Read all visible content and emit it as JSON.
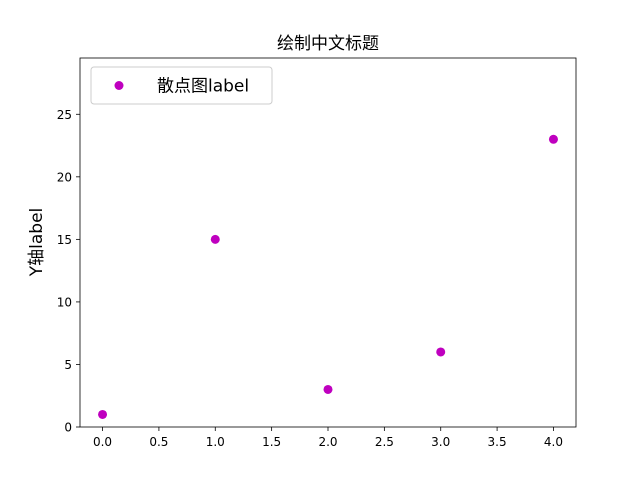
{
  "chart_data": {
    "type": "scatter",
    "title": "绘制中文标题",
    "xlabel": "",
    "ylabel": "Y轴label",
    "xlim": [
      -0.2,
      4.2
    ],
    "ylim": [
      0,
      29.5
    ],
    "xticks": [
      0.0,
      0.5,
      1.0,
      1.5,
      2.0,
      2.5,
      3.0,
      3.5,
      4.0
    ],
    "xtick_labels": [
      "0.0",
      "0.5",
      "1.0",
      "1.5",
      "2.0",
      "2.5",
      "3.0",
      "3.5",
      "4.0"
    ],
    "yticks": [
      0,
      5,
      10,
      15,
      20,
      25
    ],
    "ytick_labels": [
      "0",
      "5",
      "10",
      "15",
      "20",
      "25"
    ],
    "grid": false,
    "legend_position": "top-left",
    "series": [
      {
        "name": "散点图label",
        "color": "#bf00bf",
        "marker": "circle",
        "x": [
          0,
          1,
          2,
          3,
          4
        ],
        "y": [
          1,
          15,
          3,
          6,
          23
        ]
      }
    ]
  }
}
